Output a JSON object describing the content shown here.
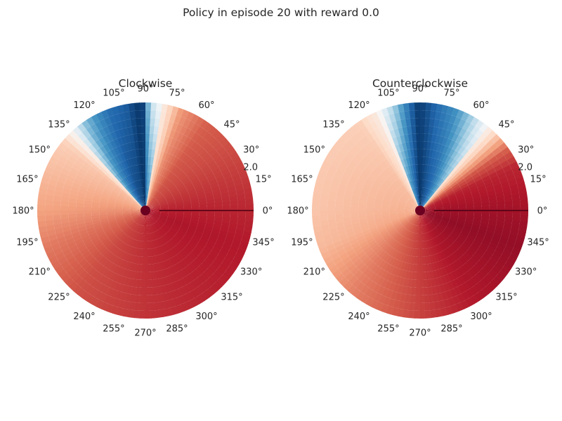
{
  "suptitle": "Policy in episode 20 with reward 0.0",
  "chart_data": [
    {
      "type": "heatmap",
      "projection": "polar",
      "title": "Clockwise",
      "colormap": "RdBu",
      "theta_tick_labels": [
        "0°",
        "15°",
        "30°",
        "45°",
        "60°",
        "75°",
        "90°",
        "105°",
        "120°",
        "135°",
        "150°",
        "165°",
        "180°",
        "195°",
        "210°",
        "225°",
        "240°",
        "255°",
        "270°",
        "285°",
        "300°",
        "315°",
        "330°",
        "345°"
      ],
      "r_tick_label": "2.0",
      "angle_profile": [
        [
          0,
          0.88
        ],
        [
          40,
          0.82
        ],
        [
          55,
          0.8
        ],
        [
          70,
          0.72
        ],
        [
          80,
          0.55
        ],
        [
          88,
          0.35
        ],
        [
          90,
          0.04
        ],
        [
          95,
          0.02
        ],
        [
          100,
          0.08
        ],
        [
          110,
          0.12
        ],
        [
          118,
          0.2
        ],
        [
          125,
          0.3
        ],
        [
          132,
          0.5
        ],
        [
          140,
          0.62
        ],
        [
          160,
          0.66
        ],
        [
          180,
          0.7
        ],
        [
          200,
          0.76
        ],
        [
          230,
          0.82
        ],
        [
          270,
          0.86
        ],
        [
          300,
          0.88
        ],
        [
          340,
          0.9
        ],
        [
          360,
          0.88
        ]
      ]
    },
    {
      "type": "heatmap",
      "projection": "polar",
      "title": "Counterclockwise",
      "colormap": "RdBu",
      "theta_tick_labels": [
        "0°",
        "15°",
        "30°",
        "45°",
        "60°",
        "75°",
        "90°",
        "105°",
        "120°",
        "135°",
        "150°",
        "165°",
        "180°",
        "195°",
        "210°",
        "225°",
        "240°",
        "255°",
        "270°",
        "285°",
        "300°",
        "315°",
        "330°",
        "345°"
      ],
      "r_tick_label": "2.0",
      "angle_profile": [
        [
          0,
          0.92
        ],
        [
          25,
          0.88
        ],
        [
          35,
          0.8
        ],
        [
          45,
          0.62
        ],
        [
          55,
          0.45
        ],
        [
          63,
          0.3
        ],
        [
          70,
          0.2
        ],
        [
          80,
          0.12
        ],
        [
          88,
          0.04
        ],
        [
          92,
          0.03
        ],
        [
          100,
          0.22
        ],
        [
          108,
          0.42
        ],
        [
          115,
          0.55
        ],
        [
          125,
          0.62
        ],
        [
          150,
          0.63
        ],
        [
          180,
          0.64
        ],
        [
          200,
          0.66
        ],
        [
          230,
          0.75
        ],
        [
          270,
          0.84
        ],
        [
          300,
          0.9
        ],
        [
          340,
          0.94
        ],
        [
          360,
          0.92
        ]
      ]
    }
  ]
}
